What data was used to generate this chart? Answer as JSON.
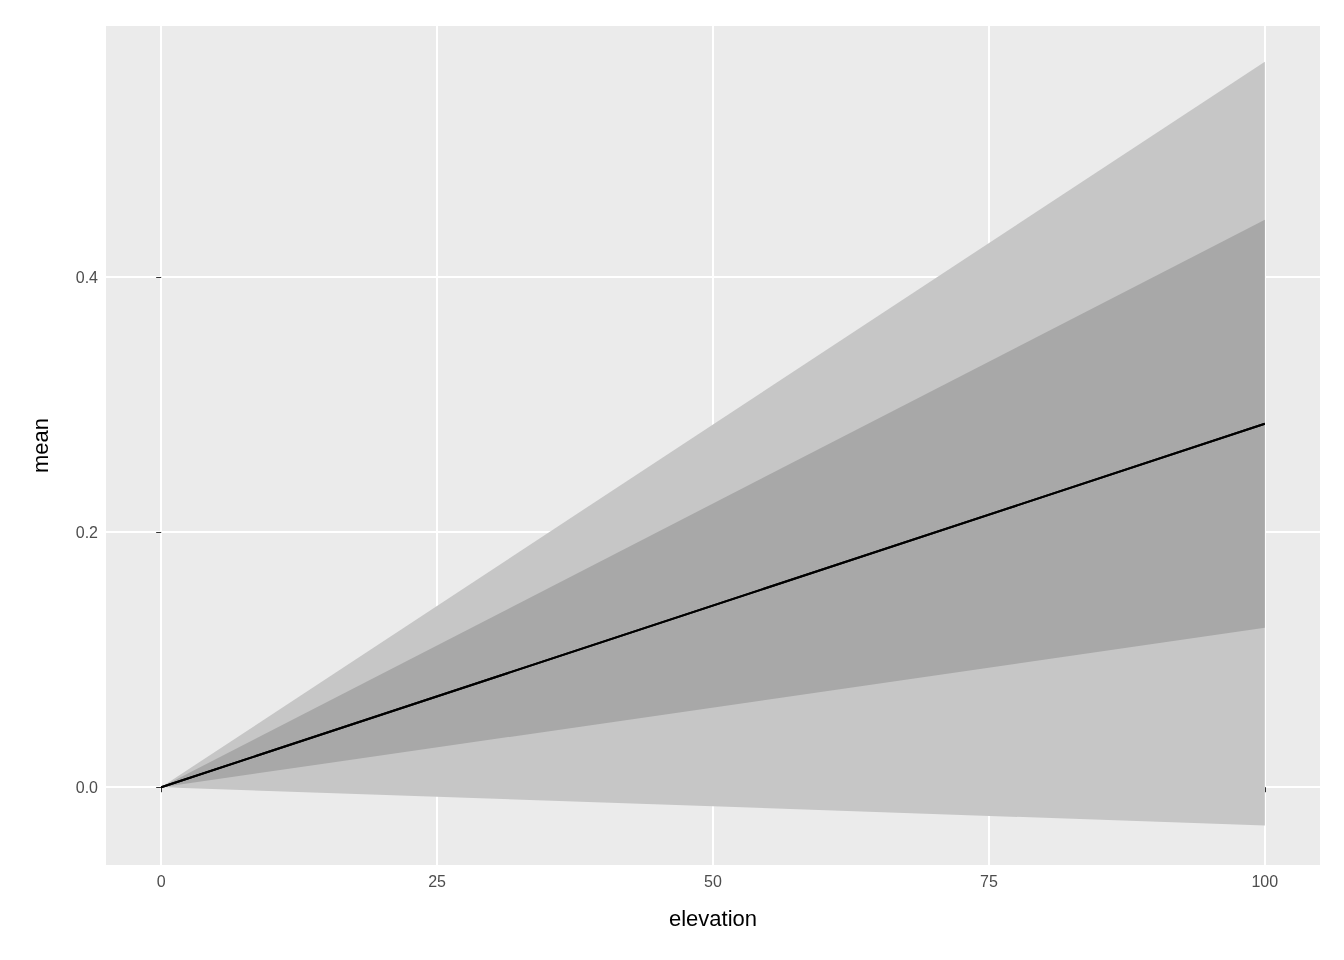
{
  "chart_data": {
    "type": "line",
    "xlabel": "elevation",
    "ylabel": "mean",
    "x": [
      0,
      100
    ],
    "series": [
      {
        "color": "#000000",
        "values": [
          0,
          0.285
        ],
        "lower": [
          0,
          -0.03
        ],
        "upper": [
          0,
          0.569
        ]
      },
      {
        "color": "#000000",
        "values": [
          0,
          0.285
        ],
        "lower": [
          0,
          0.125
        ],
        "upper": [
          0,
          0.445
        ]
      }
    ],
    "xlim": [
      -5,
      105
    ],
    "xticks": [
      0,
      25,
      50,
      75,
      100
    ],
    "ylim": [
      -0.061,
      0.597
    ],
    "yticks": [
      {
        "value": 0,
        "label": "0.0"
      },
      {
        "value": 0.2,
        "label": "0.2"
      },
      {
        "value": 0.4,
        "label": "0.4"
      }
    ],
    "grid": true
  }
}
